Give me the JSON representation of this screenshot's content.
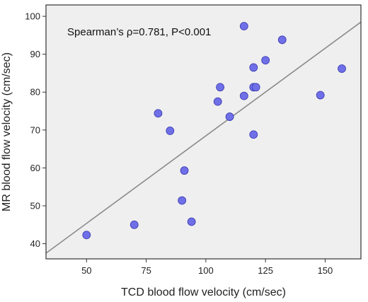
{
  "chart_data": {
    "type": "scatter",
    "xlabel": "TCD blood flow velocity (cm/sec)",
    "ylabel": "MR blood flow velocity (cm/sec)",
    "xlim": [
      33,
      165
    ],
    "ylim": [
      36,
      103
    ],
    "xticks": [
      50,
      75,
      100,
      125,
      150
    ],
    "yticks": [
      40,
      50,
      60,
      70,
      80,
      90,
      100
    ],
    "annotation": "Spearman’s ρ=0.781, P<0.001",
    "grid": false,
    "legend": "none",
    "fit_line": {
      "x": [
        33,
        165
      ],
      "y": [
        37.5,
        98.5
      ]
    },
    "points": [
      {
        "x": 50,
        "y": 42.3
      },
      {
        "x": 70,
        "y": 45.0
      },
      {
        "x": 80,
        "y": 74.4
      },
      {
        "x": 85,
        "y": 69.8
      },
      {
        "x": 90,
        "y": 51.4
      },
      {
        "x": 91,
        "y": 59.3
      },
      {
        "x": 94,
        "y": 45.8
      },
      {
        "x": 105,
        "y": 77.5
      },
      {
        "x": 106,
        "y": 81.3
      },
      {
        "x": 110,
        "y": 73.5
      },
      {
        "x": 116,
        "y": 97.4
      },
      {
        "x": 116,
        "y": 79.0
      },
      {
        "x": 120,
        "y": 86.5
      },
      {
        "x": 120,
        "y": 81.3
      },
      {
        "x": 121,
        "y": 81.3
      },
      {
        "x": 120,
        "y": 68.8
      },
      {
        "x": 125,
        "y": 88.4
      },
      {
        "x": 132,
        "y": 93.8
      },
      {
        "x": 148,
        "y": 79.2
      },
      {
        "x": 157,
        "y": 86.2
      }
    ],
    "colors": {
      "plot_background": "#efefef",
      "point_fill": "#6f6fe8",
      "point_stroke": "#3a3ab0",
      "fit_line": "#8a8a8a",
      "frame": "#333333"
    }
  }
}
